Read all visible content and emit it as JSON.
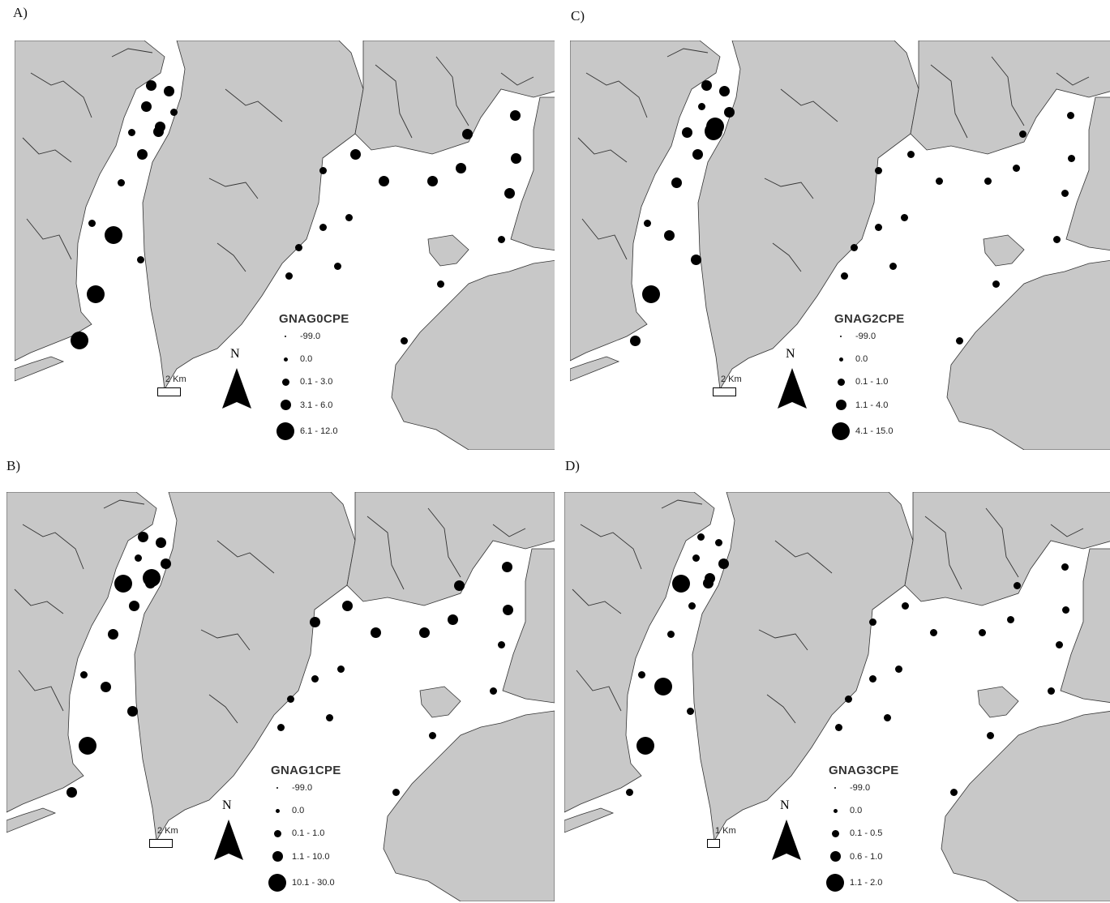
{
  "panels": [
    {
      "letter": "A)",
      "legend": {
        "title": "GNAG0CPE",
        "classes": [
          "-99.0",
          "0.0",
          "0.1 - 3.0",
          "3.1 - 6.0",
          "6.1 - 12.0"
        ]
      },
      "scale_label": "2 Km",
      "north_label": "N",
      "stations": [
        {
          "site": 1,
          "cls": 3
        },
        {
          "site": 2,
          "cls": 3
        },
        {
          "site": 3,
          "cls": 3
        },
        {
          "site": 4,
          "cls": 2
        },
        {
          "site": 5,
          "cls": 3
        },
        {
          "site": 6,
          "cls": 2
        },
        {
          "site": 7,
          "cls": 3
        },
        {
          "site": 8,
          "cls": 3
        },
        {
          "site": 9,
          "cls": 2
        },
        {
          "site": 10,
          "cls": 4
        },
        {
          "site": 11,
          "cls": 2
        },
        {
          "site": 12,
          "cls": 4
        },
        {
          "site": 13,
          "cls": 4
        },
        {
          "site": 14,
          "cls": 2
        },
        {
          "site": 15,
          "cls": 2
        },
        {
          "site": 16,
          "cls": 3
        },
        {
          "site": 17,
          "cls": 3
        },
        {
          "site": 18,
          "cls": 3
        },
        {
          "site": 19,
          "cls": 3
        },
        {
          "site": 20,
          "cls": 3
        },
        {
          "site": 21,
          "cls": 3
        },
        {
          "site": 22,
          "cls": 3
        },
        {
          "site": 23,
          "cls": 3
        },
        {
          "site": 24,
          "cls": 2
        },
        {
          "site": 25,
          "cls": 2
        },
        {
          "site": 26,
          "cls": 2
        },
        {
          "site": 27,
          "cls": 2
        },
        {
          "site": 28,
          "cls": 2
        },
        {
          "site": 29,
          "cls": 2
        },
        {
          "site": 30,
          "cls": 2
        },
        {
          "site": 31,
          "cls": 2
        }
      ]
    },
    {
      "letter": "C)",
      "legend": {
        "title": "GNAG2CPE",
        "classes": [
          "-99.0",
          "0.0",
          "0.1 - 1.0",
          "1.1 - 4.0",
          "4.1 - 15.0"
        ]
      },
      "scale_label": "2 Km",
      "north_label": "N",
      "stations": [
        {
          "site": 1,
          "cls": 3
        },
        {
          "site": 2,
          "cls": 3
        },
        {
          "site": 3,
          "cls": 2
        },
        {
          "site": 4,
          "cls": 3
        },
        {
          "site": 5,
          "cls": 4
        },
        {
          "site": 6,
          "cls": 3
        },
        {
          "site": 7,
          "cls": 4
        },
        {
          "site": 8,
          "cls": 3
        },
        {
          "site": 9,
          "cls": 3
        },
        {
          "site": 10,
          "cls": 3
        },
        {
          "site": 11,
          "cls": 3
        },
        {
          "site": 12,
          "cls": 4
        },
        {
          "site": 13,
          "cls": 3
        },
        {
          "site": 14,
          "cls": 2
        },
        {
          "site": 15,
          "cls": 2
        },
        {
          "site": 16,
          "cls": 2
        },
        {
          "site": 17,
          "cls": 2
        },
        {
          "site": 18,
          "cls": 2
        },
        {
          "site": 19,
          "cls": 2
        },
        {
          "site": 20,
          "cls": 2
        },
        {
          "site": 21,
          "cls": 2
        },
        {
          "site": 22,
          "cls": 2
        },
        {
          "site": 23,
          "cls": 2
        },
        {
          "site": 24,
          "cls": 2
        },
        {
          "site": 25,
          "cls": 2
        },
        {
          "site": 26,
          "cls": 2
        },
        {
          "site": 27,
          "cls": 2
        },
        {
          "site": 28,
          "cls": 2
        },
        {
          "site": 29,
          "cls": 2
        },
        {
          "site": 30,
          "cls": 2
        },
        {
          "site": 31,
          "cls": 2
        }
      ]
    },
    {
      "letter": "B)",
      "legend": {
        "title": "GNAG1CPE",
        "classes": [
          "-99.0",
          "0.0",
          "0.1 - 1.0",
          "1.1 - 10.0",
          "10.1 - 30.0"
        ]
      },
      "scale_label": "2 Km",
      "north_label": "N",
      "stations": [
        {
          "site": 1,
          "cls": 3
        },
        {
          "site": 2,
          "cls": 3
        },
        {
          "site": 3,
          "cls": 2
        },
        {
          "site": 4,
          "cls": 3
        },
        {
          "site": 5,
          "cls": 4
        },
        {
          "site": 6,
          "cls": 4
        },
        {
          "site": 7,
          "cls": 3
        },
        {
          "site": 8,
          "cls": 3
        },
        {
          "site": 9,
          "cls": 3
        },
        {
          "site": 10,
          "cls": 3
        },
        {
          "site": 11,
          "cls": 3
        },
        {
          "site": 12,
          "cls": 4
        },
        {
          "site": 13,
          "cls": 3
        },
        {
          "site": 14,
          "cls": 2
        },
        {
          "site": 15,
          "cls": 3
        },
        {
          "site": 16,
          "cls": 3
        },
        {
          "site": 17,
          "cls": 3
        },
        {
          "site": 18,
          "cls": 3
        },
        {
          "site": 19,
          "cls": 3
        },
        {
          "site": 20,
          "cls": 3
        },
        {
          "site": 21,
          "cls": 3
        },
        {
          "site": 22,
          "cls": 3
        },
        {
          "site": 23,
          "cls": 2
        },
        {
          "site": 24,
          "cls": 2
        },
        {
          "site": 25,
          "cls": 2
        },
        {
          "site": 26,
          "cls": 2
        },
        {
          "site": 27,
          "cls": 2
        },
        {
          "site": 28,
          "cls": 2
        },
        {
          "site": 29,
          "cls": 2
        },
        {
          "site": 30,
          "cls": 2
        },
        {
          "site": 31,
          "cls": 2
        }
      ]
    },
    {
      "letter": "D)",
      "legend": {
        "title": "GNAG3CPE",
        "classes": [
          "-99.0",
          "0.0",
          "0.1 - 0.5",
          "0.6 - 1.0",
          "1.1 - 2.0"
        ]
      },
      "scale_label": "1 Km",
      "north_label": "N",
      "stations": [
        {
          "site": 1,
          "cls": 2
        },
        {
          "site": 2,
          "cls": 2
        },
        {
          "site": 3,
          "cls": 2
        },
        {
          "site": 4,
          "cls": 3
        },
        {
          "site": 5,
          "cls": 3
        },
        {
          "site": 6,
          "cls": 4
        },
        {
          "site": 7,
          "cls": 3
        },
        {
          "site": 8,
          "cls": 2
        },
        {
          "site": 9,
          "cls": 2
        },
        {
          "site": 10,
          "cls": 4
        },
        {
          "site": 11,
          "cls": 2
        },
        {
          "site": 12,
          "cls": 4
        },
        {
          "site": 13,
          "cls": 2
        },
        {
          "site": 14,
          "cls": 2
        },
        {
          "site": 15,
          "cls": 2
        },
        {
          "site": 16,
          "cls": 2
        },
        {
          "site": 17,
          "cls": 2
        },
        {
          "site": 18,
          "cls": 2
        },
        {
          "site": 19,
          "cls": 2
        },
        {
          "site": 20,
          "cls": 2
        },
        {
          "site": 21,
          "cls": 2
        },
        {
          "site": 22,
          "cls": 2
        },
        {
          "site": 23,
          "cls": 2
        },
        {
          "site": 24,
          "cls": 2
        },
        {
          "site": 25,
          "cls": 2
        },
        {
          "site": 26,
          "cls": 2
        },
        {
          "site": 27,
          "cls": 2
        },
        {
          "site": 28,
          "cls": 2
        },
        {
          "site": 29,
          "cls": 2
        },
        {
          "site": 30,
          "cls": 2
        },
        {
          "site": 31,
          "cls": 2
        }
      ]
    }
  ]
}
